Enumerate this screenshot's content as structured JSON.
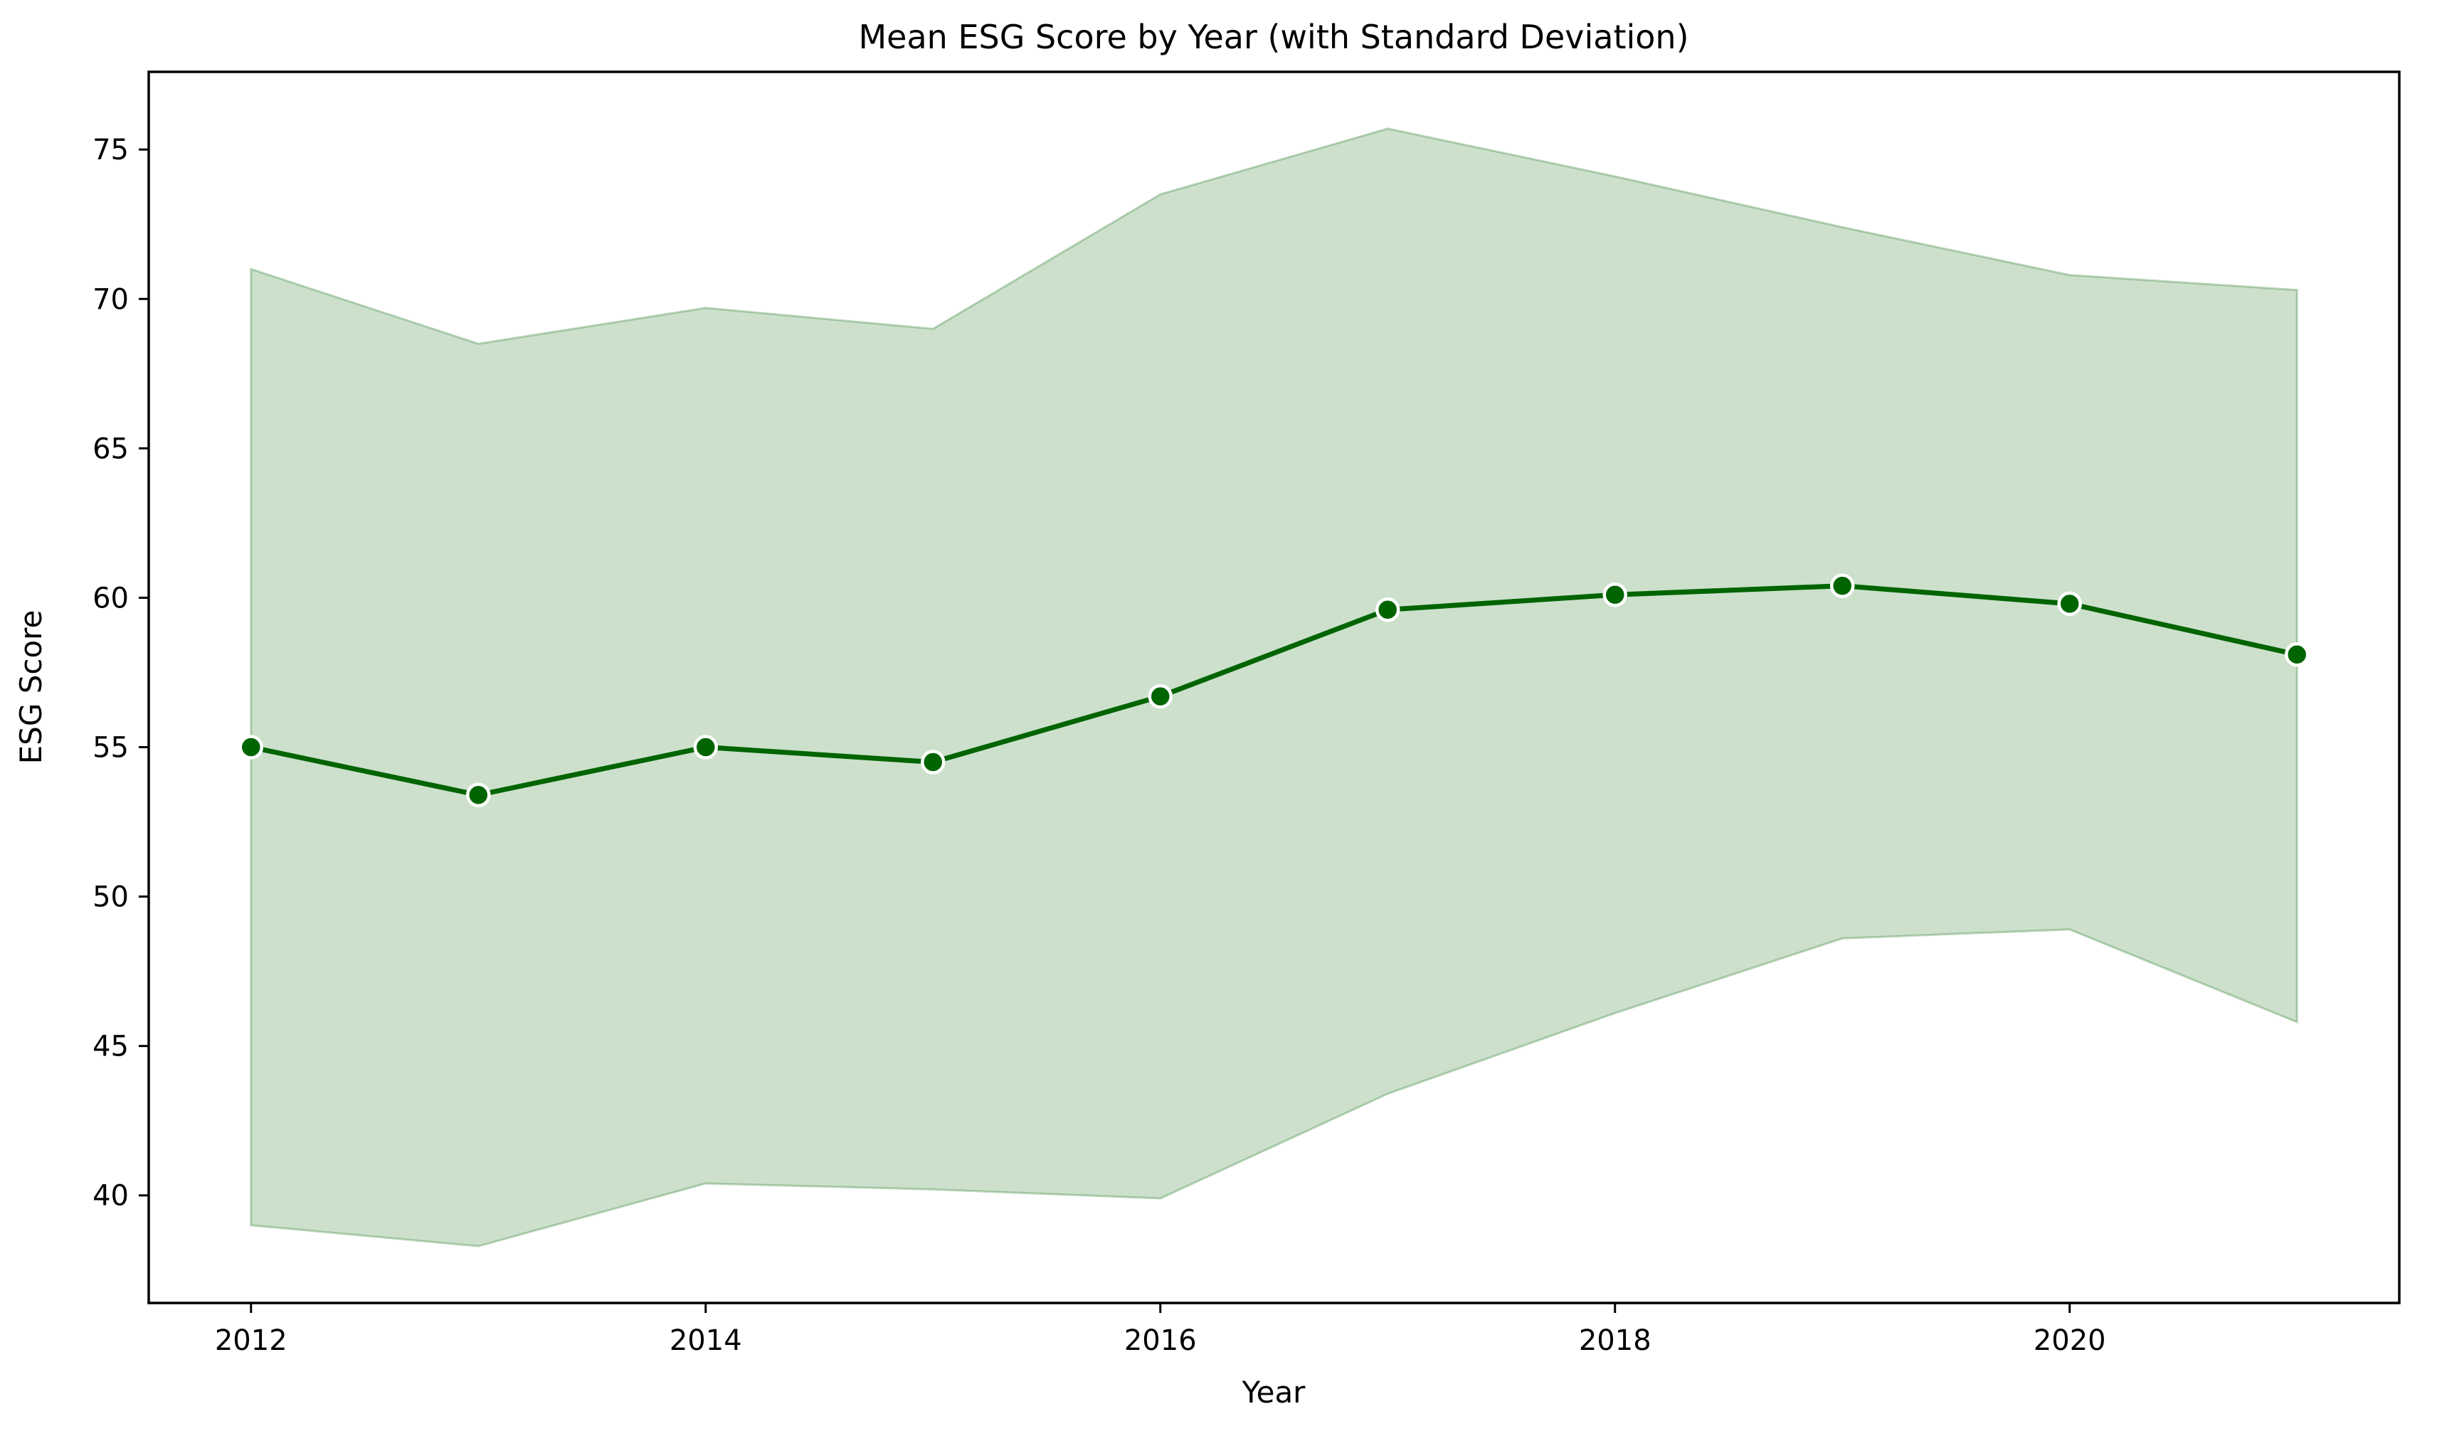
{
  "figure": {
    "background": "#ffffff"
  },
  "chart_data": {
    "type": "line",
    "title": "Mean ESG Score by Year (with Standard Deviation)",
    "xlabel": "Year",
    "ylabel": "ESG Score",
    "x": [
      2012,
      2013,
      2014,
      2015,
      2016,
      2017,
      2018,
      2019,
      2020,
      2021
    ],
    "series": [
      {
        "name": "Mean ESG Score",
        "values": [
          55.0,
          53.4,
          55.0,
          54.5,
          56.7,
          59.6,
          60.1,
          60.4,
          59.8,
          58.1
        ]
      }
    ],
    "band": {
      "name": "standard-deviation-band",
      "upper": [
        71.0,
        68.5,
        69.7,
        69.0,
        73.5,
        75.7,
        74.1,
        72.4,
        70.8,
        70.3
      ],
      "lower": [
        39.0,
        38.3,
        40.4,
        40.2,
        39.9,
        43.4,
        46.1,
        48.6,
        48.9,
        45.8
      ]
    },
    "xticks": [
      2012,
      2014,
      2016,
      2018,
      2020
    ],
    "yticks": [
      40,
      45,
      50,
      55,
      60,
      65,
      70,
      75
    ],
    "x_range": [
      2011.55,
      2021.45
    ],
    "y_range": [
      36.4,
      77.6
    ],
    "grid": false,
    "legend": null,
    "marker": "circle",
    "colors": {
      "line": "#006400",
      "marker_fill": "#006400",
      "marker_edge": "#ffffff",
      "band_fill": "rgba(0,100,0,0.2)",
      "band_edge": "rgba(0,100,0,0.25)",
      "spine": "#000000",
      "tick": "#000000",
      "text": "#000000"
    }
  }
}
